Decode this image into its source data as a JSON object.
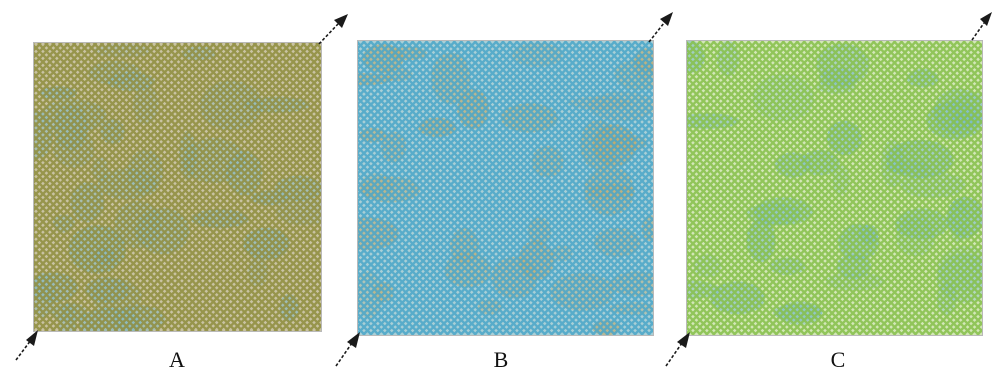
{
  "panels": [
    {
      "label": "A",
      "base": "#c9c3a3",
      "mesh": "#8f8d3e",
      "mottle": "#7fb7c6"
    },
    {
      "label": "B",
      "base": "#a9cfd6",
      "mesh": "#4ba6c8",
      "mottle": "#c6a45c"
    },
    {
      "label": "C",
      "base": "#d3e7b8",
      "mesh": "#86c04a",
      "mottle": "#79b9c9"
    }
  ],
  "colors": {
    "arrow": "#1a1a1a",
    "label": "#111111",
    "border": "#b9b9b9"
  },
  "icons": {
    "arrow": "diagonal-arrow-icon"
  }
}
